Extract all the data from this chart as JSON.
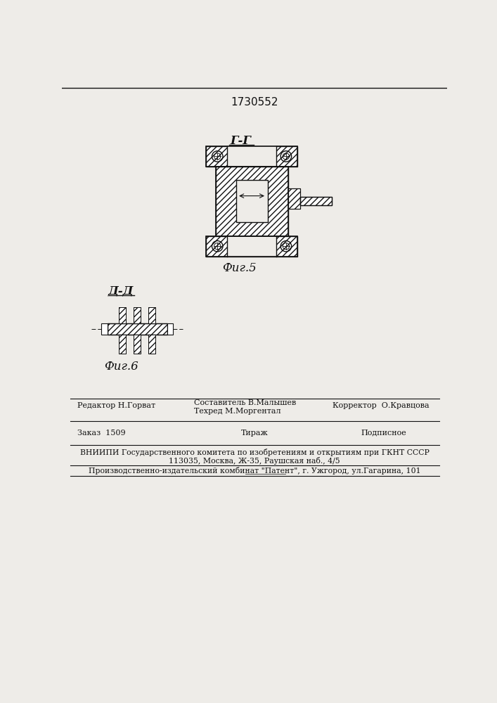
{
  "patent_number": "1730552",
  "fig5_label": "Г-Г",
  "fig5_caption": "Фиг.5",
  "fig6_label": "Д-Д",
  "fig6_caption": "Фиг.6",
  "bg_color": "#eeece8",
  "line_color": "#111111",
  "footer_row1_left": "Редактор Н.Горват",
  "footer_row1_mid1": "Составитель В.Малышев",
  "footer_row1_mid2": "Техред М.Моргентал",
  "footer_row1_right": "Корректор  О.Кравцова",
  "footer_row2_left": "Заказ  1509",
  "footer_row2_mid": "Тираж",
  "footer_row2_right": "Подписное",
  "footer_vnipi": "ВНИИПИ Государственного комитета по изобретениям и открытиям при ГКНТ СССР",
  "footer_address": "113035, Москва, Ж-35, Раушская наб., 4/5",
  "footer_plant": "Производственно-издательский комбинат \"Патент\", г. Ужгород, ул.Гагарина, 101"
}
